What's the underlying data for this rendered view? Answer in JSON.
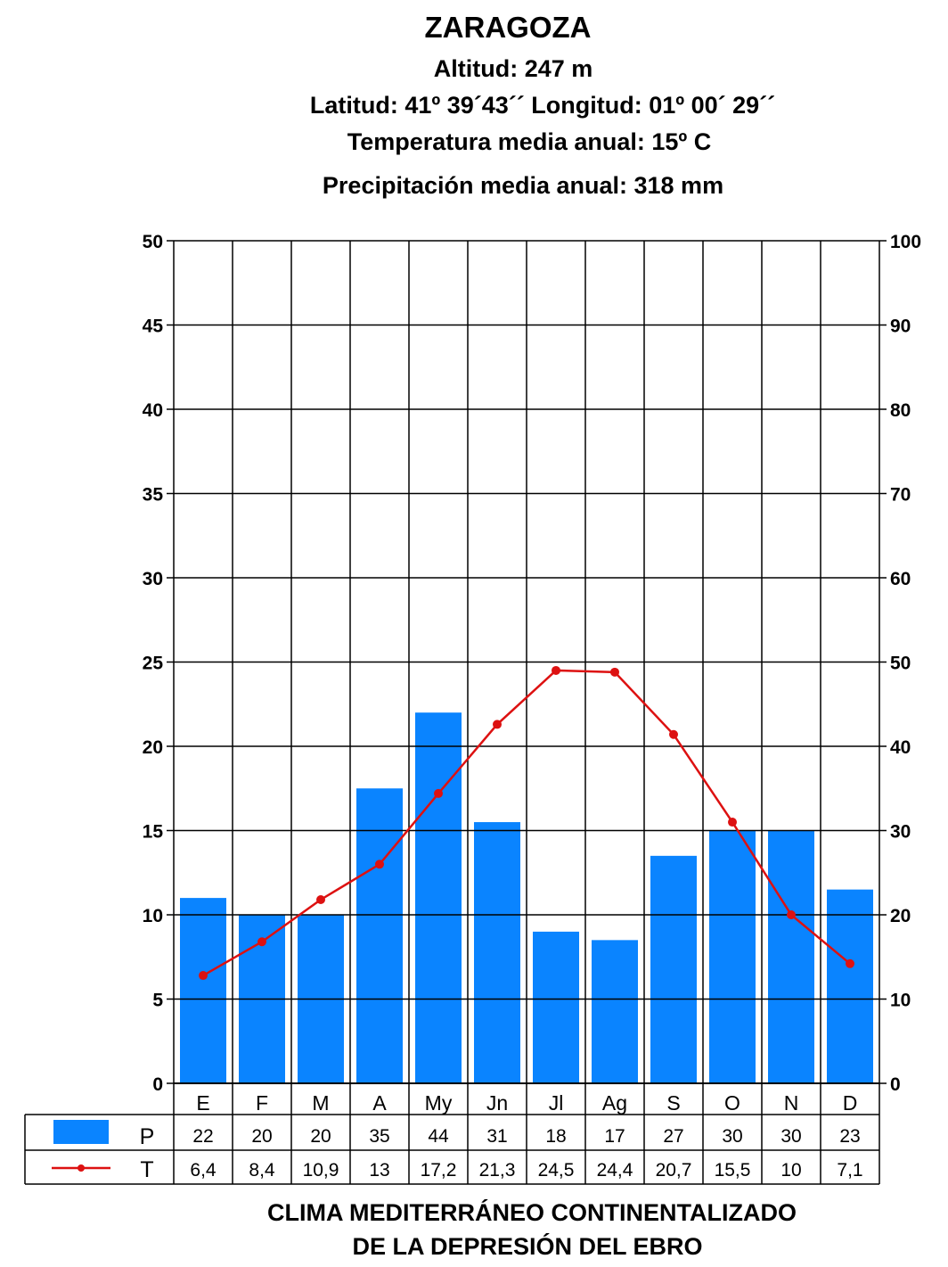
{
  "header": {
    "station": "ZARAGOZA",
    "altitude": "Altitud: 247 m",
    "coords": "Latitud:  41º 39´43´´ Longitud: 01º 00´ 29´´",
    "mean_temp": "Temperatura media anual: 15º C",
    "mean_precip": "Precipitación media anual: 318 mm"
  },
  "footer": {
    "line1": "CLIMA MEDITERRÁNEO CONTINENTALIZADO",
    "line2": "DE LA DEPRESIÓN DEL EBRO"
  },
  "colors": {
    "bar": "#0a84ff",
    "line": "#dd1111",
    "grid": "#000000"
  },
  "chart_data": {
    "type": "bar",
    "categories": [
      "E",
      "F",
      "M",
      "A",
      "My",
      "Jn",
      "Jl",
      "Ag",
      "S",
      "O",
      "N",
      "D"
    ],
    "series": [
      {
        "name": "P",
        "type": "bar",
        "axis": "right",
        "values": [
          22,
          20,
          20,
          35,
          44,
          31,
          18,
          17,
          27,
          30,
          30,
          23
        ],
        "labels": [
          "22",
          "20",
          "20",
          "35",
          "44",
          "31",
          "18",
          "17",
          "27",
          "30",
          "30",
          "23"
        ]
      },
      {
        "name": "T",
        "type": "line",
        "axis": "left",
        "values": [
          6.4,
          8.4,
          10.9,
          13,
          17.2,
          21.3,
          24.5,
          24.4,
          20.7,
          15.5,
          10,
          7.1
        ],
        "labels": [
          "6,4",
          "8,4",
          "10,9",
          "13",
          "17,2",
          "21,3",
          "24,5",
          "24,4",
          "20,7",
          "15,5",
          "10",
          "7,1"
        ]
      }
    ],
    "y_left": {
      "ylim": [
        0,
        50
      ],
      "ticks": [
        "0",
        "5",
        "10",
        "15",
        "20",
        "25",
        "30",
        "35",
        "40",
        "45",
        "50"
      ]
    },
    "y_right": {
      "ylim": [
        0,
        100
      ],
      "ticks": [
        "0",
        "10",
        "20",
        "30",
        "40",
        "50",
        "60",
        "70",
        "80",
        "90",
        "100"
      ]
    },
    "grid": true,
    "legend": "table-below"
  }
}
